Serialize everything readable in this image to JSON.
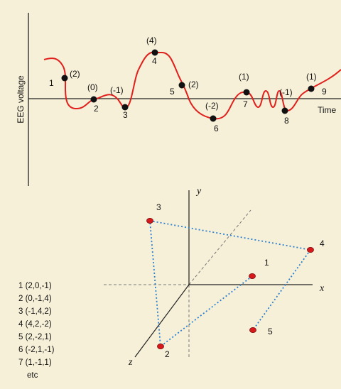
{
  "colors": {
    "background": "#f7f0d8",
    "signal": "#e0201c",
    "axis": "#222222",
    "point_fill": "#111111",
    "scatter_point": "#d8191c",
    "connector": "#2a7fd0",
    "guide": "#777777"
  },
  "eeg": {
    "ylabel": "EEG voltage",
    "xlabel": "Time",
    "points": [
      {
        "id": "1",
        "value": "(2)"
      },
      {
        "id": "2",
        "value": "(0)"
      },
      {
        "id": "3",
        "value": "(-1)"
      },
      {
        "id": "4",
        "value": "(4)"
      },
      {
        "id": "5",
        "value": "(2)"
      },
      {
        "id": "6",
        "value": "(-2)"
      },
      {
        "id": "7",
        "value": "(1)"
      },
      {
        "id": "8",
        "value": "(-1)"
      },
      {
        "id": "9",
        "value": "(1)"
      }
    ]
  },
  "space": {
    "x_label": "x",
    "y_label": "y",
    "z_label": "z",
    "points": [
      {
        "id": "1"
      },
      {
        "id": "2"
      },
      {
        "id": "3"
      },
      {
        "id": "4"
      },
      {
        "id": "5"
      }
    ]
  },
  "coordinate_list": [
    "1 (2,0,-1)",
    "2 (0,-1,4)",
    "3 (-1,4,2)",
    "4 (4,2,-2)",
    "5 (2,-2,1)",
    "6 (-2,1,-1)",
    "7 (1,-1,1)",
    "etc"
  ]
}
